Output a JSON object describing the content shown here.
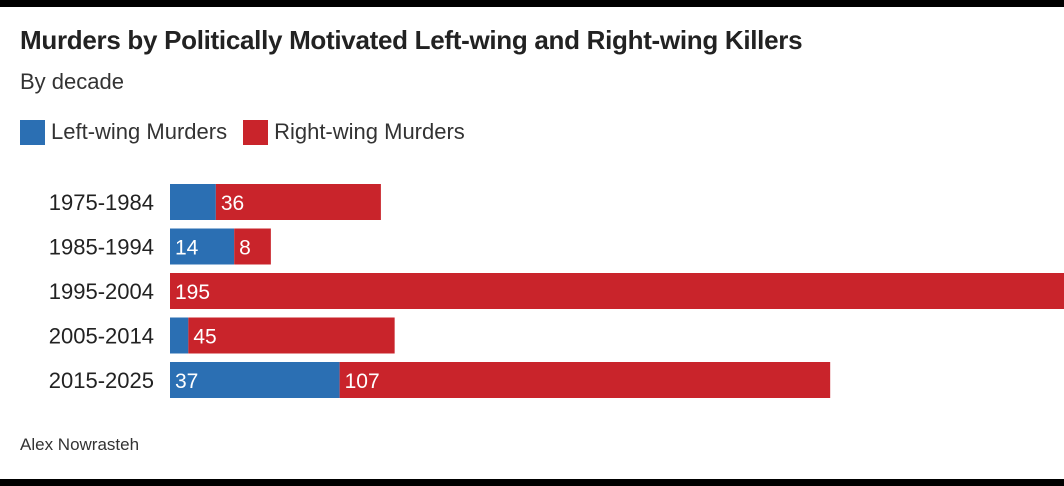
{
  "chart_data": {
    "type": "bar",
    "orientation": "horizontal",
    "stacked": true,
    "title": "Murders by Politically Motivated Left-wing and Right-wing Killers",
    "subtitle": "By decade",
    "categories": [
      "1975-1984",
      "1985-1994",
      "1995-2004",
      "2005-2014",
      "2015-2025"
    ],
    "series": [
      {
        "name": "Left-wing Murders",
        "color": "#2b6fb3",
        "values": [
          10,
          14,
          0,
          4,
          37
        ],
        "labels": [
          "",
          "14",
          "",
          "",
          "37"
        ]
      },
      {
        "name": "Right-wing Murders",
        "color": "#c9242b",
        "values": [
          36,
          8,
          195,
          45,
          107
        ],
        "labels": [
          "36",
          "8",
          "195",
          "45",
          "107"
        ]
      }
    ],
    "xlim": [
      0,
      195
    ],
    "grid": false,
    "legend_position": "top-left",
    "source": "Alex Nowrasteh"
  }
}
